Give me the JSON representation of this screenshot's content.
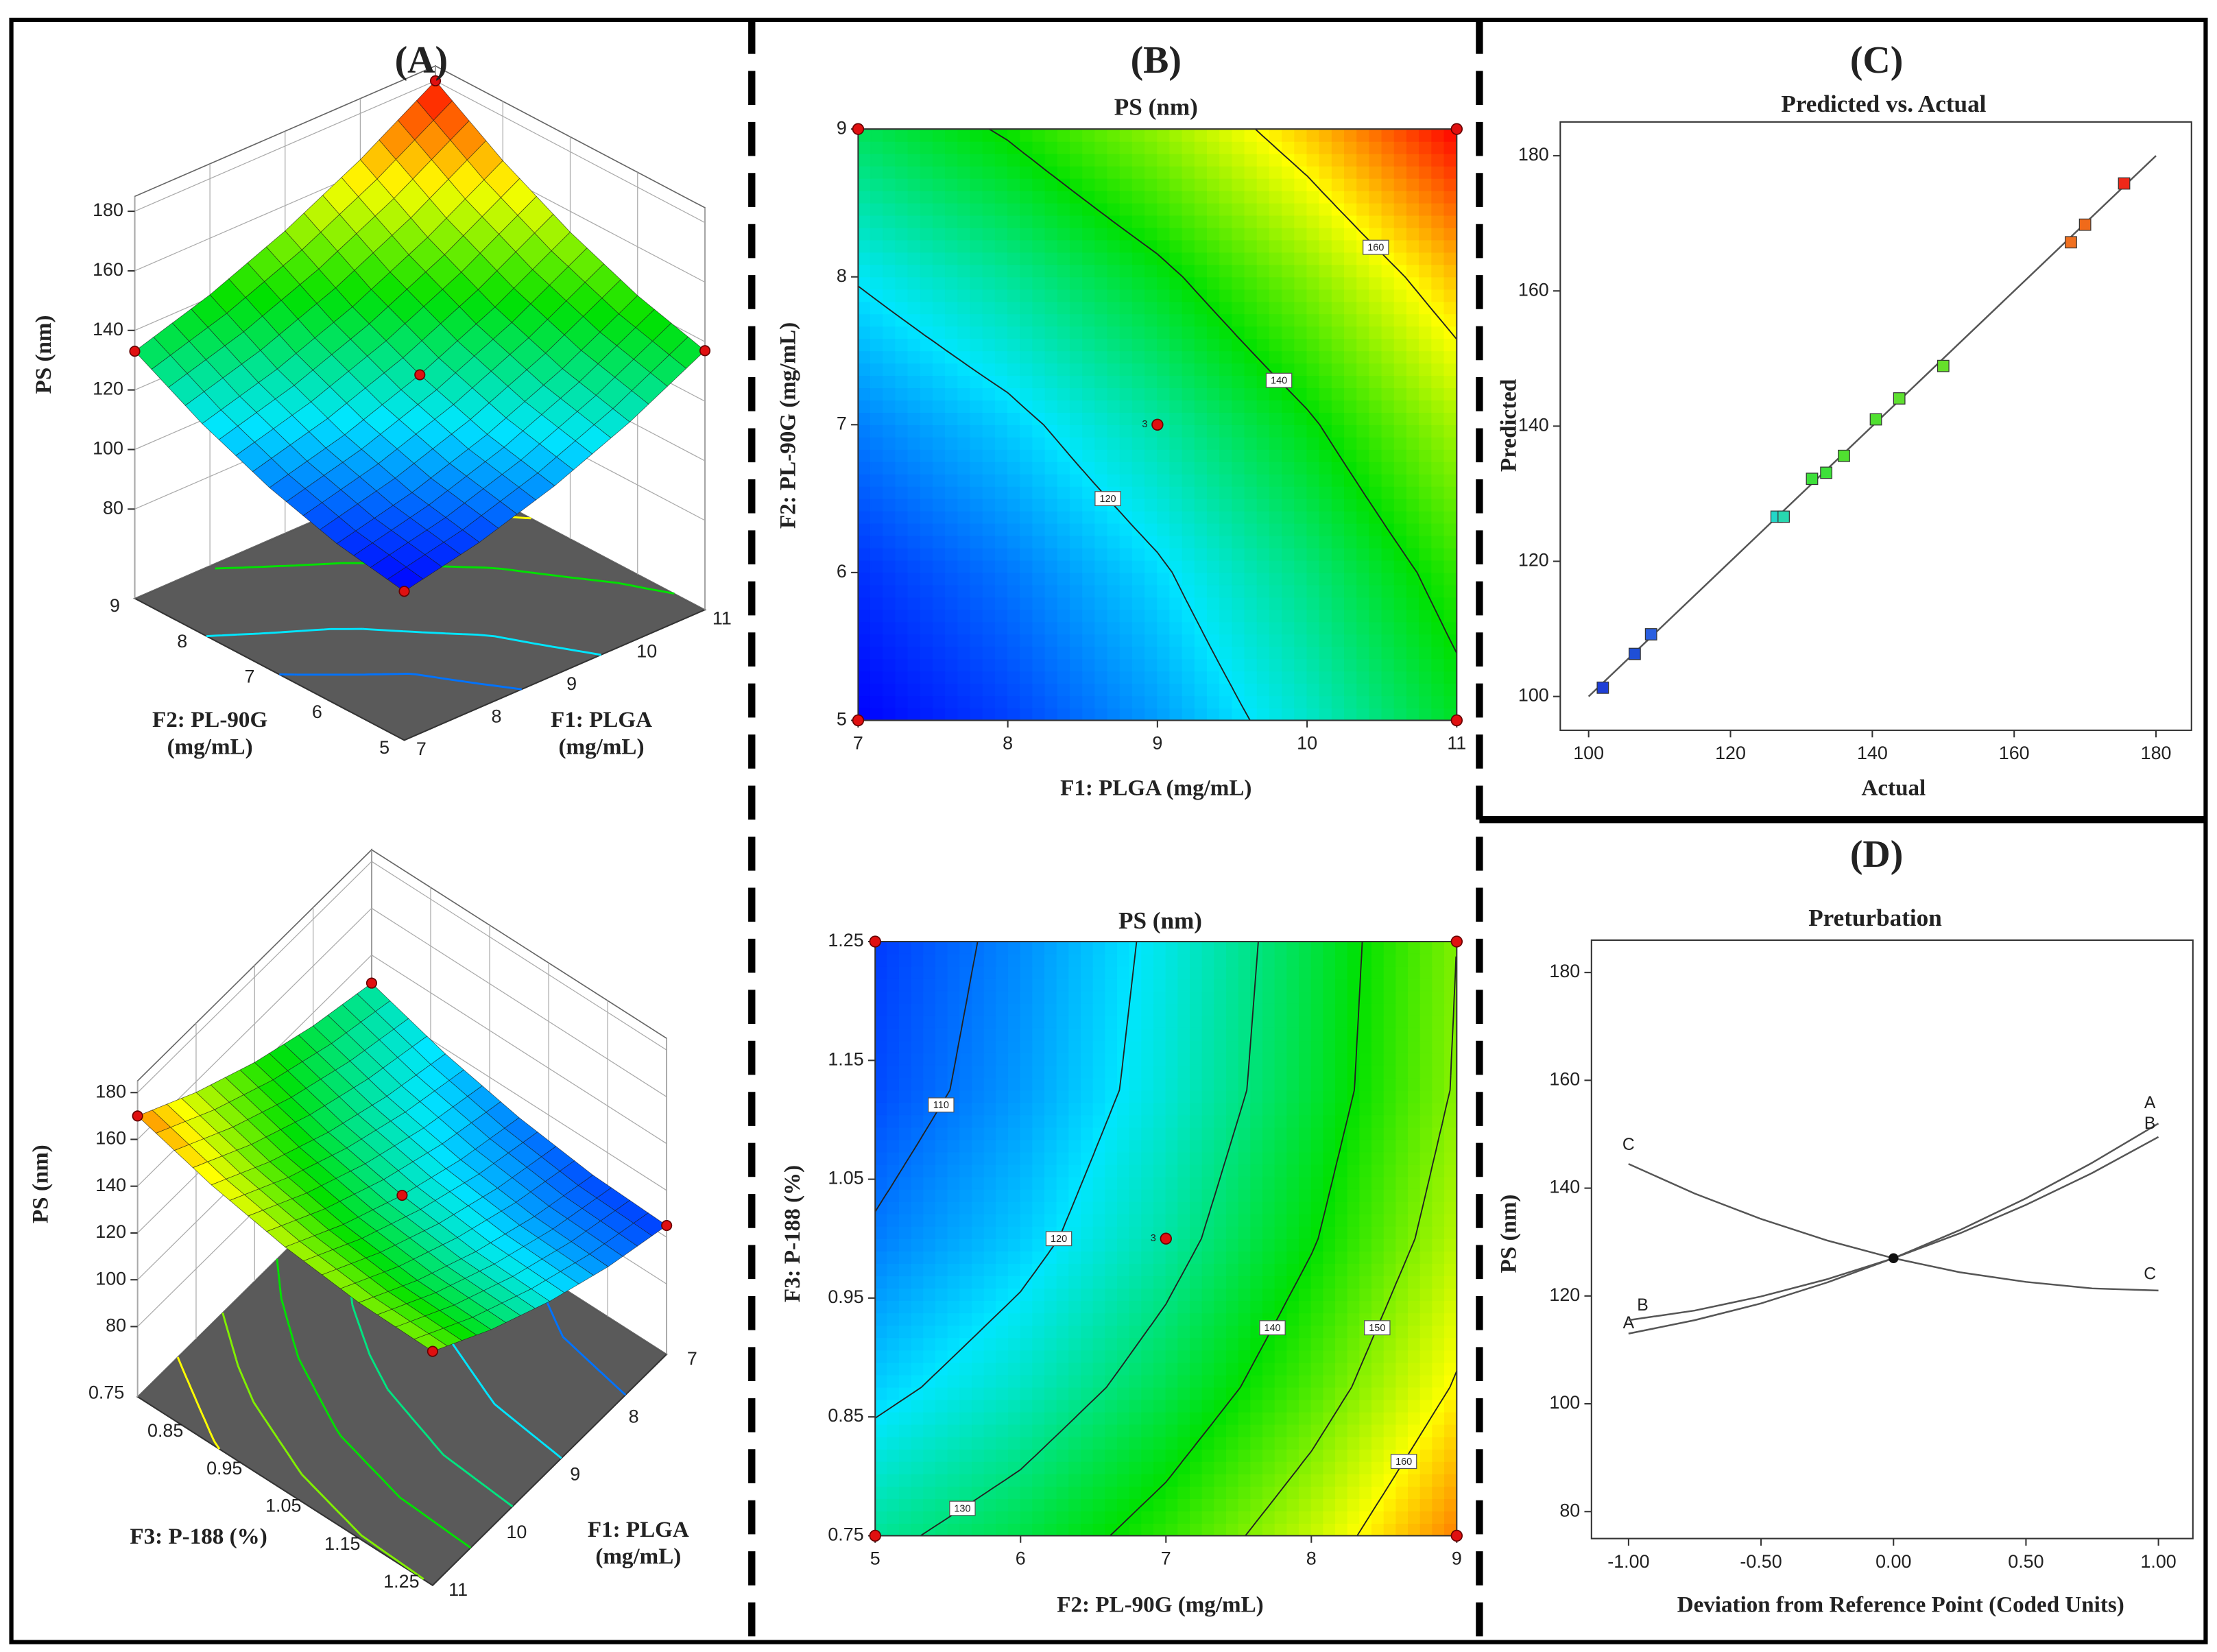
{
  "chart_data": [
    {
      "type": "surface",
      "panel": "(A)",
      "zlabel": "PS (nm)",
      "xlabel": [
        "F1: PLGA",
        "(mg/mL)"
      ],
      "ylabel": [
        "F2: PL-90G",
        "(mg/mL)"
      ],
      "x": [
        7,
        8,
        9,
        10,
        11
      ],
      "y": [
        5,
        6,
        7,
        8,
        9
      ],
      "z": [
        [
          100,
          105.5,
          113.5,
          124,
          137
        ],
        [
          104.1,
          110.3,
          118.9,
          130,
          143.6
        ],
        [
          111,
          117.8,
          127,
          138.8,
          153
        ],
        [
          120.6,
          128,
          137.9,
          150.3,
          165.1
        ],
        [
          133,
          141,
          151.5,
          164.5,
          180
        ]
      ],
      "xlim": [
        7,
        11
      ],
      "ylim": [
        5,
        9
      ],
      "zlim": [
        50,
        185
      ],
      "xticks": [
        7,
        8,
        9,
        10,
        11
      ],
      "yticks": [
        5,
        6,
        7,
        8,
        9
      ],
      "zticks": [
        80,
        100,
        120,
        140,
        160,
        180
      ],
      "color_range": [
        100,
        180
      ],
      "floor_contours": [
        110,
        120,
        140,
        160
      ]
    },
    {
      "type": "contour",
      "panel": "(B)",
      "title": "PS (nm)",
      "xlabel": "F1: PLGA (mg/mL)",
      "ylabel": "F2: PL-90G (mg/mL)",
      "x": [
        7,
        8,
        9,
        10,
        11
      ],
      "y": [
        5,
        6,
        7,
        8,
        9
      ],
      "z": [
        [
          100,
          105.5,
          113.5,
          124,
          137
        ],
        [
          104.1,
          110.3,
          118.9,
          130,
          143.6
        ],
        [
          111,
          117.8,
          127,
          138.8,
          153
        ],
        [
          120.6,
          128,
          137.9,
          150.3,
          165.1
        ],
        [
          133,
          141,
          151.5,
          164.5,
          180
        ]
      ],
      "xlim": [
        7,
        11
      ],
      "ylim": [
        5,
        9
      ],
      "xticks": [
        7,
        8,
        9,
        10,
        11
      ],
      "yticks": [
        5,
        6,
        7,
        8,
        9
      ],
      "color_range": [
        100,
        180
      ],
      "levels": [
        120,
        140,
        160
      ],
      "points": {
        "x": [
          7,
          11,
          7,
          11,
          9
        ],
        "y": [
          5,
          5,
          9,
          9,
          7
        ]
      },
      "point_label": "3"
    },
    {
      "type": "scatter",
      "panel": "(C)",
      "title": "Predicted vs. Actual",
      "xlabel": "Actual",
      "ylabel": "Predicted",
      "x": [
        102,
        106.5,
        108.8,
        126.5,
        127.5,
        131.5,
        133.5,
        136,
        140.5,
        143.8,
        150,
        168,
        170,
        175.5
      ],
      "y": [
        101.3,
        106.3,
        109.2,
        126.6,
        126.6,
        132.2,
        133.1,
        135.6,
        141,
        144.1,
        148.9,
        167.2,
        169.8,
        175.9
      ],
      "colors": [
        "#1f3fd6",
        "#1f4fd6",
        "#2a5fe0",
        "#22d6c8",
        "#28d8b0",
        "#3ee03a",
        "#3ee03a",
        "#50e030",
        "#50e030",
        "#5ee030",
        "#66e02a",
        "#f07020",
        "#f06a1a",
        "#f02818"
      ],
      "line": {
        "x": [
          100,
          180
        ],
        "y": [
          100,
          180
        ]
      },
      "xlim": [
        96,
        185
      ],
      "ylim": [
        95,
        185
      ],
      "xticks": [
        100,
        120,
        140,
        160,
        180
      ],
      "yticks": [
        100,
        120,
        140,
        160,
        180
      ]
    },
    {
      "type": "surface",
      "zlabel": "PS (nm)",
      "xlabel": [
        "F1: PLGA",
        "(mg/mL)"
      ],
      "ylabel": [
        "F3: P-188 (%)"
      ],
      "x": [
        7,
        8,
        9,
        10,
        11
      ],
      "y": [
        0.75,
        0.875,
        1,
        1.125,
        1.25
      ],
      "z": [
        [
          128,
          134.4,
          143.5,
          155.4,
          170
        ],
        [
          117.9,
          124.5,
          133.8,
          145.9,
          160.7
        ],
        [
          110.8,
          117.5,
          127,
          139.3,
          154.3
        ],
        [
          106.4,
          113.4,
          123.1,
          135.5,
          150.7
        ],
        [
          105,
          112.1,
          122,
          134.6,
          150
        ]
      ],
      "xlim": [
        7,
        11
      ],
      "ylim": [
        0.75,
        1.25
      ],
      "zlim": [
        50,
        185
      ],
      "xticks": [
        7,
        8,
        9,
        10,
        11
      ],
      "yticks": [
        0.75,
        0.85,
        0.95,
        1.05,
        1.15,
        1.25
      ],
      "zticks": [
        80,
        100,
        120,
        140,
        160,
        180
      ],
      "color_range": [
        100,
        180
      ],
      "floor_contours": [
        110,
        120,
        130,
        140,
        150,
        160
      ]
    },
    {
      "type": "contour",
      "title": "PS (nm)",
      "xlabel": "F2: PL-90G (mg/mL)",
      "ylabel": "F3: P-188 (%)",
      "x": [
        5,
        6,
        7,
        8,
        9
      ],
      "y": [
        0.75,
        0.875,
        1,
        1.125,
        1.25
      ],
      "z": [
        [
          128,
          134.4,
          143.5,
          155.4,
          170
        ],
        [
          117.9,
          124.5,
          133.8,
          145.9,
          160.7
        ],
        [
          110.8,
          117.5,
          127,
          139.3,
          154.3
        ],
        [
          106.4,
          113.4,
          123.1,
          135.5,
          150.7
        ],
        [
          105,
          112.1,
          122,
          134.6,
          150
        ]
      ],
      "xlim": [
        5,
        9
      ],
      "ylim": [
        0.75,
        1.25
      ],
      "xticks": [
        5,
        6,
        7,
        8,
        9
      ],
      "yticks": [
        0.75,
        0.85,
        0.95,
        1.05,
        1.15,
        1.25
      ],
      "color_range": [
        100,
        180
      ],
      "levels": [
        110,
        120,
        130,
        140,
        150,
        160
      ],
      "points": {
        "x": [
          5,
          9,
          5,
          9,
          7
        ],
        "y": [
          0.75,
          0.75,
          1.25,
          1.25,
          1
        ]
      },
      "point_label": "3"
    },
    {
      "type": "line",
      "panel": "(D)",
      "title": "Preturbation",
      "xlabel": "Deviation from Reference Point (Coded Units)",
      "ylabel": "PS (nm)",
      "x": [
        -1,
        -0.75,
        -0.5,
        -0.25,
        0,
        0.25,
        0.5,
        0.75,
        1
      ],
      "series": [
        {
          "name": "A",
          "color": "#555555",
          "values": [
            113,
            115.5,
            118.6,
            122.5,
            127,
            132.2,
            138.1,
            144.7,
            152
          ]
        },
        {
          "name": "B",
          "color": "#555555",
          "values": [
            115.5,
            117.3,
            119.9,
            123.1,
            127,
            131.6,
            136.9,
            142.8,
            149.5
          ]
        },
        {
          "name": "C",
          "color": "#555555",
          "values": [
            144.5,
            139,
            134.3,
            130.3,
            127,
            124.4,
            122.6,
            121.4,
            121
          ]
        }
      ],
      "xlim": [
        -1.14,
        1.13
      ],
      "ylim": [
        75,
        186
      ],
      "xticks": [
        {
          "value": -1,
          "label": "-1.00"
        },
        {
          "value": -0.5,
          "label": "-0.50"
        },
        {
          "value": 0,
          "label": "0.00"
        },
        {
          "value": 0.5,
          "label": "0.50"
        },
        {
          "value": 1,
          "label": "1.00"
        }
      ],
      "yticks": [
        80,
        100,
        120,
        140,
        160,
        180
      ]
    }
  ]
}
